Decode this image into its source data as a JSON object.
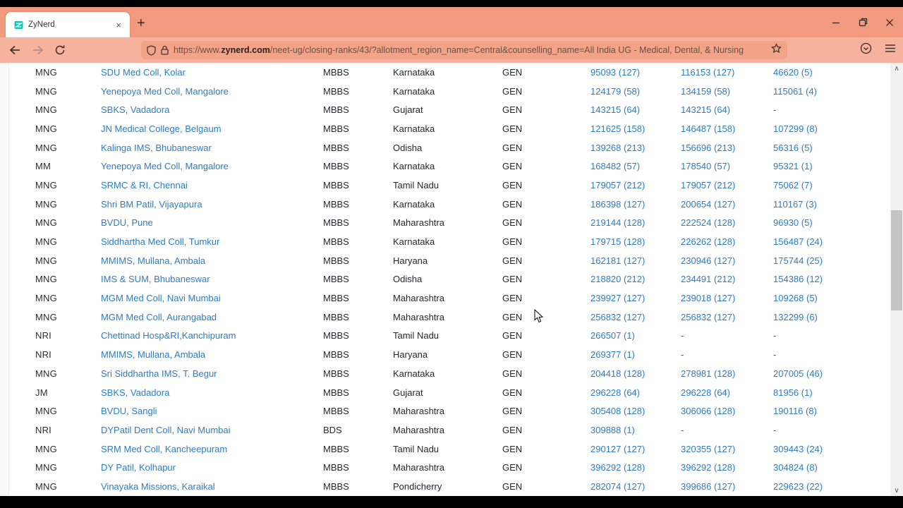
{
  "colors": {
    "chrome_salmon": "#f19a7e",
    "toolbar_salmon": "#f7b29d",
    "urlbar_salmon": "#f3a388",
    "link_blue": "#2e7cc3",
    "favicon_teal": "#16c2b0"
  },
  "browser": {
    "tab": {
      "title": "ZyNerd",
      "close_glyph": "×"
    },
    "newtab_glyph": "+",
    "url": {
      "prefix": "https://www.",
      "domain": "zynerd.com",
      "path": "/neet-ug/closing-ranks/43/?allotment_region_name=Central&counselling_name=All India UG - Medical, Dental, & Nursing"
    },
    "icons": {
      "back": "back-arrow",
      "forward": "forward-arrow",
      "reload": "reload",
      "tracking_shield": "shield",
      "lock": "padlock",
      "bookmark_star": "star",
      "protections": "circle-badge",
      "menu": "hamburger",
      "minimize": "minimize",
      "restore": "restore",
      "close": "close"
    }
  },
  "scrollbar": {
    "up_glyph": "∧",
    "down_glyph": "∨"
  },
  "table": {
    "rows": [
      {
        "quota": "MNG",
        "college": "SDU Med Coll, Kolar",
        "course": "MBBS",
        "state": "Karnataka",
        "category": "GEN",
        "ranks": [
          "95093 (127)",
          "116153 (127)",
          "46620 (5)"
        ]
      },
      {
        "quota": "MNG",
        "college": "Yenepoya Med Coll, Mangalore",
        "course": "MBBS",
        "state": "Karnataka",
        "category": "GEN",
        "ranks": [
          "124179 (58)",
          "134159 (58)",
          "115061 (4)"
        ]
      },
      {
        "quota": "MNG",
        "college": "SBKS, Vadadora",
        "course": "MBBS",
        "state": "Gujarat",
        "category": "GEN",
        "ranks": [
          "143215 (64)",
          "143215 (64)",
          "-"
        ]
      },
      {
        "quota": "MNG",
        "college": "JN Medical College, Belgaum",
        "course": "MBBS",
        "state": "Karnataka",
        "category": "GEN",
        "ranks": [
          "121625 (158)",
          "146487 (158)",
          "107299 (8)"
        ]
      },
      {
        "quota": "MNG",
        "college": "Kalinga IMS, Bhubaneswar",
        "course": "MBBS",
        "state": "Odisha",
        "category": "GEN",
        "ranks": [
          "139268 (213)",
          "156696 (213)",
          "56316 (5)"
        ]
      },
      {
        "quota": "MM",
        "college": "Yenepoya Med Coll, Mangalore",
        "course": "MBBS",
        "state": "Karnataka",
        "category": "GEN",
        "ranks": [
          "168482 (57)",
          "178540 (57)",
          "95321 (1)"
        ]
      },
      {
        "quota": "MNG",
        "college": "SRMC & RI, Chennai",
        "course": "MBBS",
        "state": "Tamil Nadu",
        "category": "GEN",
        "ranks": [
          "179057 (212)",
          "179057 (212)",
          "75062 (7)"
        ]
      },
      {
        "quota": "MNG",
        "college": "Shri BM Patil, Vijayapura",
        "course": "MBBS",
        "state": "Karnataka",
        "category": "GEN",
        "ranks": [
          "186398 (127)",
          "200654 (127)",
          "110167 (3)"
        ]
      },
      {
        "quota": "MNG",
        "college": "BVDU, Pune",
        "course": "MBBS",
        "state": "Maharashtra",
        "category": "GEN",
        "ranks": [
          "219144 (128)",
          "222524 (128)",
          "96930 (5)"
        ]
      },
      {
        "quota": "MNG",
        "college": "Siddhartha Med Coll, Tumkur",
        "course": "MBBS",
        "state": "Karnataka",
        "category": "GEN",
        "ranks": [
          "179715 (128)",
          "226262 (128)",
          "156487 (24)"
        ]
      },
      {
        "quota": "MNG",
        "college": "MMIMS, Mullana, Ambala",
        "course": "MBBS",
        "state": "Haryana",
        "category": "GEN",
        "ranks": [
          "162181 (127)",
          "230946 (127)",
          "175744 (25)"
        ]
      },
      {
        "quota": "MNG",
        "college": "IMS & SUM, Bhubaneswar",
        "course": "MBBS",
        "state": "Odisha",
        "category": "GEN",
        "ranks": [
          "218820 (212)",
          "234491 (212)",
          "154386 (12)"
        ]
      },
      {
        "quota": "MNG",
        "college": "MGM Med Coll, Navi Mumbai",
        "course": "MBBS",
        "state": "Maharashtra",
        "category": "GEN",
        "ranks": [
          "239927 (127)",
          "239018 (127)",
          "109268 (5)"
        ]
      },
      {
        "quota": "MNG",
        "college": "MGM Med Coll, Aurangabad",
        "course": "MBBS",
        "state": "Maharashtra",
        "category": "GEN",
        "ranks": [
          "256832 (127)",
          "256832 (127)",
          "132299 (6)"
        ]
      },
      {
        "quota": "NRI",
        "college": "Chettinad Hosp&RI,Kanchipuram",
        "course": "MBBS",
        "state": "Tamil Nadu",
        "category": "GEN",
        "ranks": [
          "266507 (1)",
          "-",
          "-"
        ]
      },
      {
        "quota": "NRI",
        "college": "MMIMS, Mullana, Ambala",
        "course": "MBBS",
        "state": "Haryana",
        "category": "GEN",
        "ranks": [
          "269377 (1)",
          "-",
          "-"
        ]
      },
      {
        "quota": "MNG",
        "college": "Sri Siddhartha IMS, T. Begur",
        "course": "MBBS",
        "state": "Karnataka",
        "category": "GEN",
        "ranks": [
          "204418 (128)",
          "278981 (128)",
          "207005 (46)"
        ]
      },
      {
        "quota": "JM",
        "college": "SBKS, Vadadora",
        "course": "MBBS",
        "state": "Gujarat",
        "category": "GEN",
        "ranks": [
          "296228 (64)",
          "296228 (64)",
          "81956 (1)"
        ]
      },
      {
        "quota": "MNG",
        "college": "BVDU, Sangli",
        "course": "MBBS",
        "state": "Maharashtra",
        "category": "GEN",
        "ranks": [
          "305408 (128)",
          "306066 (128)",
          "190116 (8)"
        ]
      },
      {
        "quota": "NRI",
        "college": "DYPatil Dent Coll, Navi Mumbai",
        "course": "BDS",
        "state": "Maharashtra",
        "category": "GEN",
        "ranks": [
          "309888 (1)",
          "-",
          "-"
        ]
      },
      {
        "quota": "MNG",
        "college": "SRM Med Coll, Kancheepuram",
        "course": "MBBS",
        "state": "Tamil Nadu",
        "category": "GEN",
        "ranks": [
          "290127 (127)",
          "320355 (127)",
          "309443 (24)"
        ]
      },
      {
        "quota": "MNG",
        "college": "DY Patil, Kolhapur",
        "course": "MBBS",
        "state": "Maharashtra",
        "category": "GEN",
        "ranks": [
          "396292 (128)",
          "396292 (128)",
          "304824 (8)"
        ]
      },
      {
        "quota": "MNG",
        "college": "Vinayaka Missions, Karaikal",
        "course": "MBBS",
        "state": "Pondicherry",
        "category": "GEN",
        "ranks": [
          "282074 (127)",
          "399686 (127)",
          "229623 (22)"
        ]
      }
    ]
  }
}
